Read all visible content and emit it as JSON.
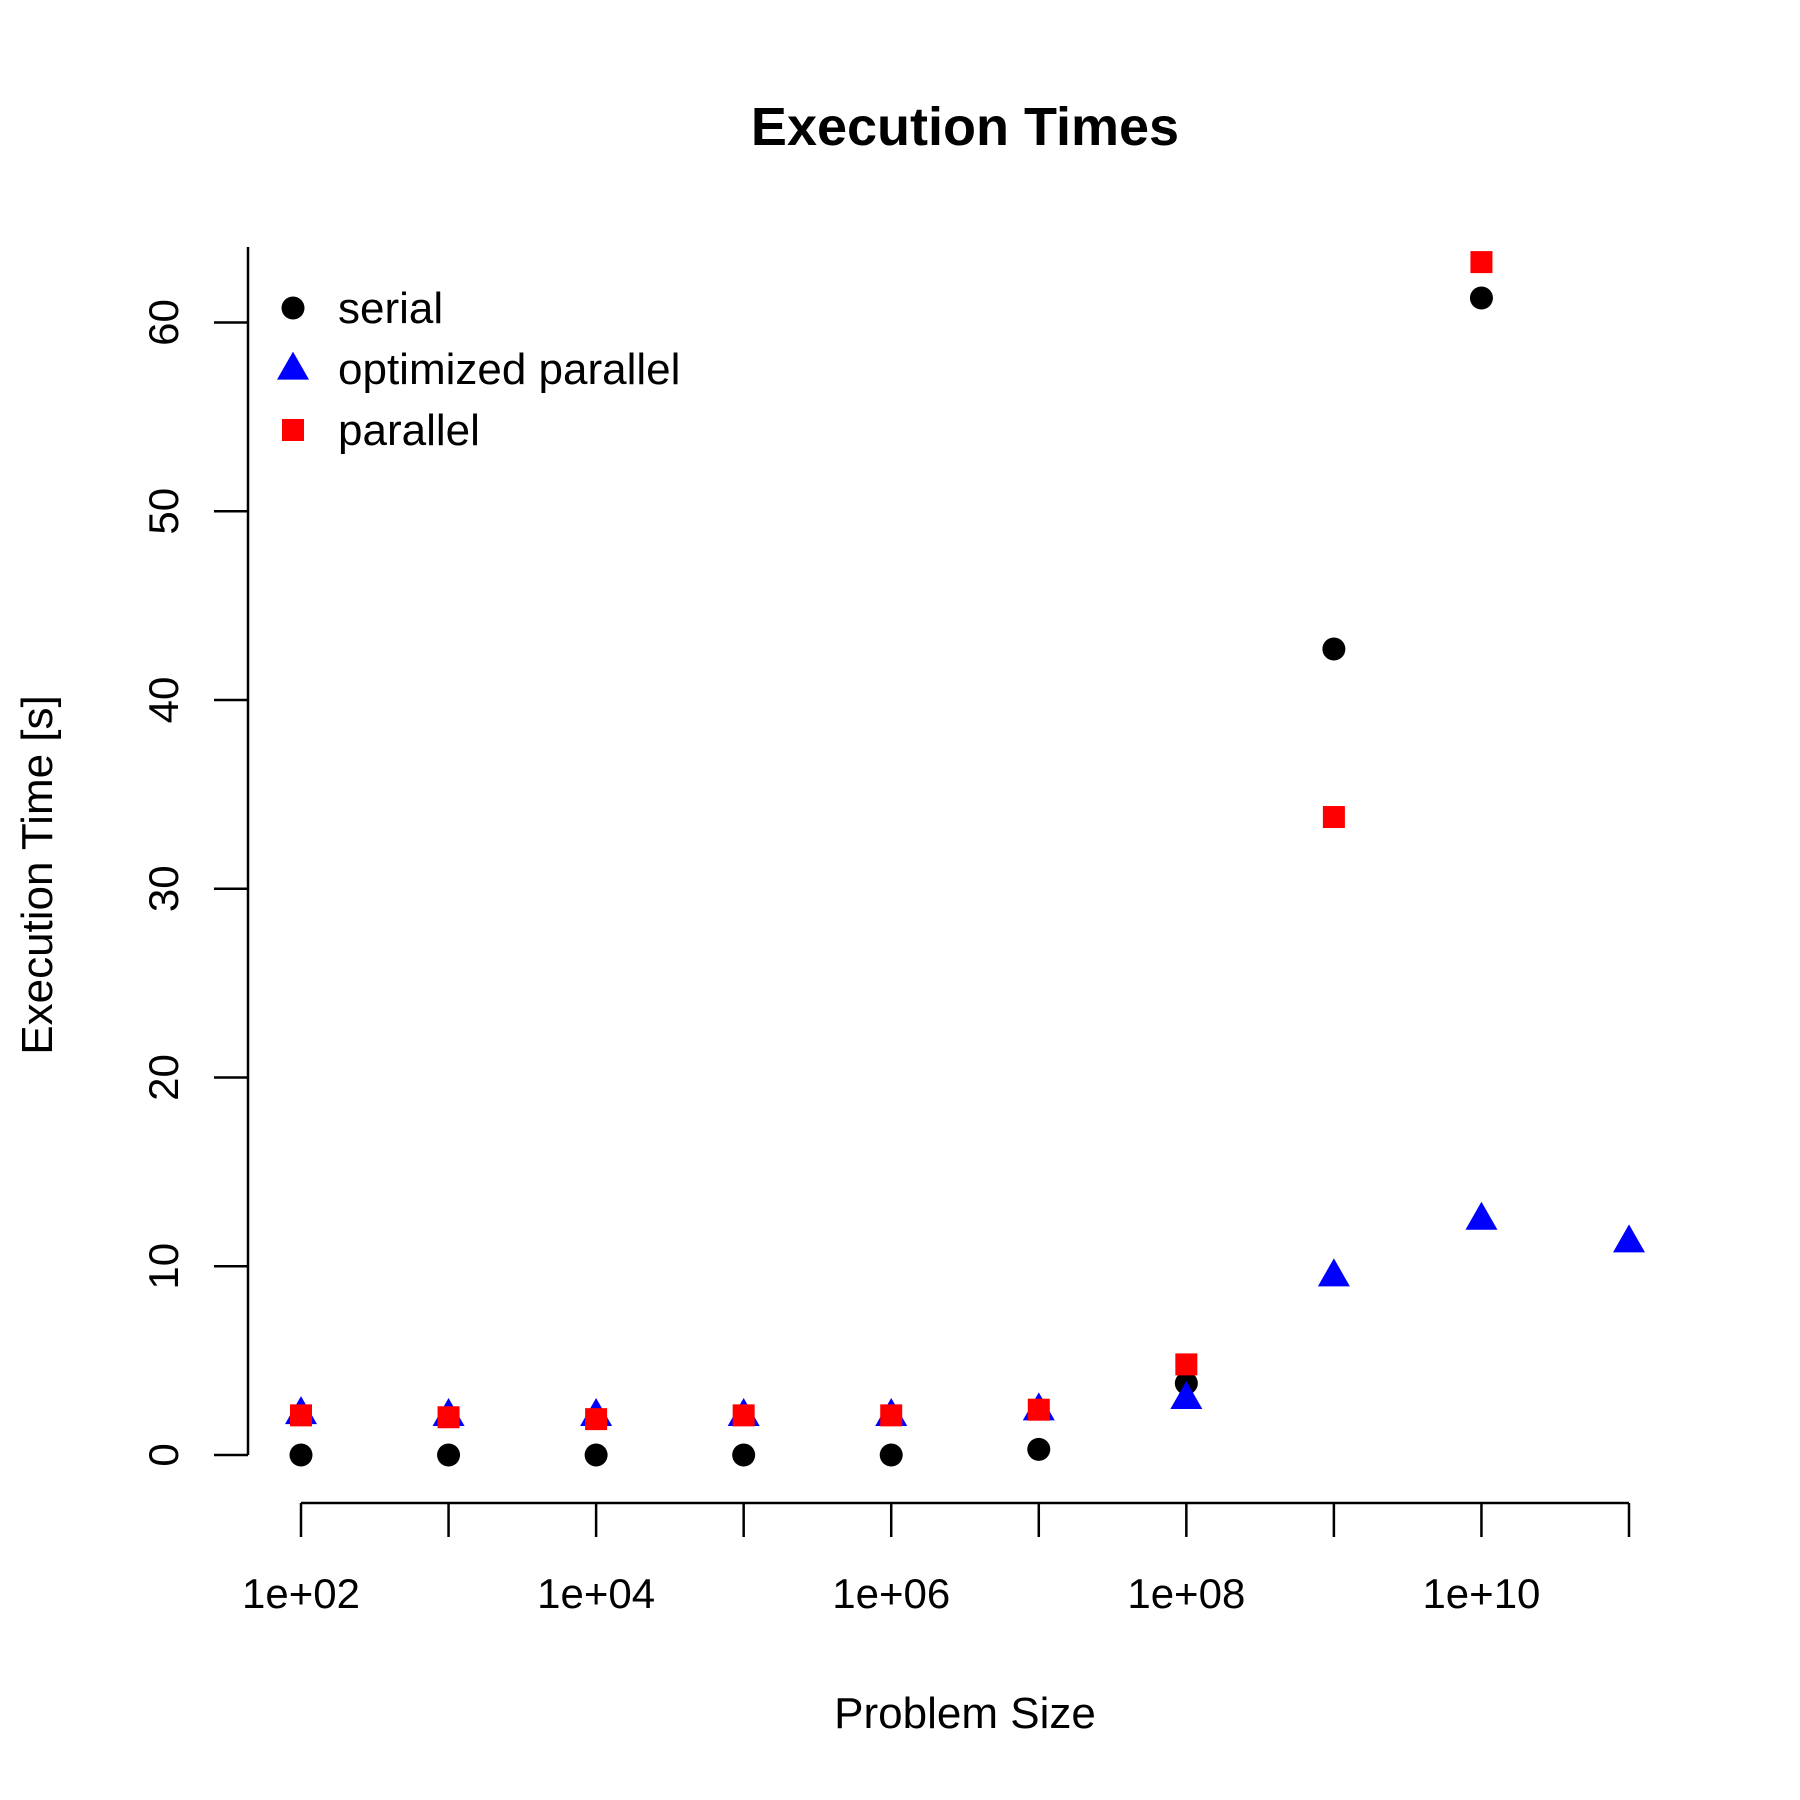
{
  "chart_data": {
    "type": "scatter",
    "title": "Execution Times",
    "xlabel": "Problem Size",
    "ylabel": "Execution Time [s]",
    "xscale": "log10",
    "xlim": [
      100,
      100000000000
    ],
    "ylim": [
      0,
      64
    ],
    "x_tick_values": [
      100,
      1000,
      10000,
      100000,
      1000000,
      10000000,
      100000000,
      1000000000,
      10000000000,
      100000000000
    ],
    "x_tick_labels": [
      "1e+02",
      "",
      "1e+04",
      "",
      "1e+06",
      "",
      "1e+08",
      "",
      "1e+10",
      ""
    ],
    "y_ticks": [
      0,
      10,
      20,
      30,
      40,
      50,
      60
    ],
    "y_tick_labels": [
      "0",
      "10",
      "20",
      "30",
      "40",
      "50",
      "60"
    ],
    "grid": false,
    "legend_position": "top-left",
    "series": [
      {
        "name": "serial",
        "marker": "circle",
        "color": "#000000",
        "x": [
          100,
          1000,
          10000,
          100000,
          1000000,
          10000000,
          100000000,
          1000000000,
          10000000000
        ],
        "y": [
          0.0,
          0.0,
          0.0,
          0.0,
          0.0,
          0.3,
          3.8,
          42.7,
          61.3
        ]
      },
      {
        "name": "optimized parallel",
        "marker": "triangle",
        "color": "#0000ff",
        "x": [
          100,
          1000,
          10000,
          100000,
          1000000,
          10000000,
          100000000,
          1000000000,
          10000000000,
          100000000000
        ],
        "y": [
          2.2,
          2.1,
          2.1,
          2.1,
          2.1,
          2.4,
          3.0,
          9.5,
          12.5,
          11.3
        ]
      },
      {
        "name": "parallel",
        "marker": "square",
        "color": "#ff0000",
        "x": [
          100,
          1000,
          10000,
          100000,
          1000000,
          10000000,
          100000000,
          1000000000,
          10000000000
        ],
        "y": [
          2.1,
          2.0,
          1.9,
          2.1,
          2.1,
          2.4,
          4.8,
          33.8,
          63.2
        ]
      }
    ]
  }
}
